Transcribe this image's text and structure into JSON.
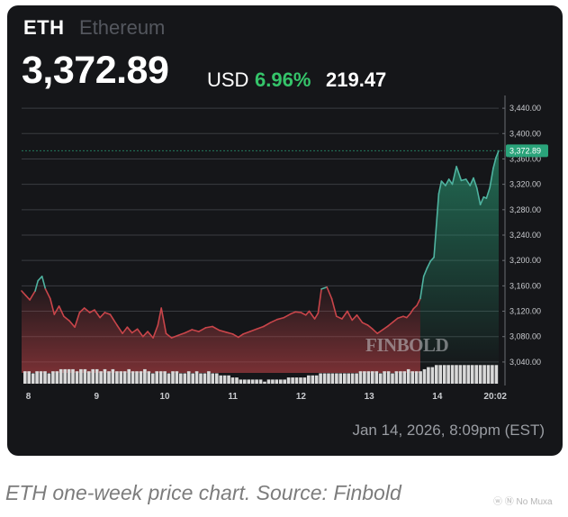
{
  "header": {
    "ticker": "ETH",
    "name": "Ethereum",
    "price": "3,372.89",
    "currency": "USD",
    "change_pct": "6.96%",
    "change_abs": "219.47"
  },
  "timestamp": "Jan 14, 2026, 8:09pm (EST)",
  "caption": "ETH one-week price chart. Source: Finbold",
  "credit": "ⓦ Ⓝ No Muxa",
  "watermark": "FINBOLD",
  "colors": {
    "background": "#151619",
    "up": "#35c46a",
    "down": "#c9454a",
    "line_up": "#4fb3a0",
    "text_muted": "#9a9da3",
    "volume": "#d9d9d9"
  },
  "chart_data": {
    "type": "line",
    "ylim": [
      3020,
      3460
    ],
    "yticks": [
      3440,
      3400,
      3360,
      3320,
      3280,
      3240,
      3200,
      3160,
      3120,
      3080,
      3040
    ],
    "ytick_labels": [
      "3,440.00",
      "3,400.00",
      "3,360.00",
      "3,320.00",
      "3,280.00",
      "3,240.00",
      "3,200.00",
      "3,160.00",
      "3,120.00",
      "3,080.00",
      "3,040.00"
    ],
    "current_value": 3372.89,
    "current_label": "3,372.89",
    "xticks": [
      8,
      9,
      10,
      11,
      12,
      13,
      14,
      14.85
    ],
    "xtick_labels": [
      "8",
      "9",
      "10",
      "11",
      "12",
      "13",
      "14",
      "20:02"
    ],
    "xlim": [
      7.9,
      14.9
    ],
    "series": [
      {
        "x": [
          7.9,
          7.96,
          8.02,
          8.1,
          8.14,
          8.2,
          8.25,
          8.32,
          8.38,
          8.45,
          8.52,
          8.6,
          8.68,
          8.75,
          8.82,
          8.9,
          8.97,
          9.05,
          9.12,
          9.2,
          9.3,
          9.38,
          9.45,
          9.52,
          9.6,
          9.68,
          9.75,
          9.83,
          9.9,
          9.95,
          10.02,
          10.1,
          10.2,
          10.3,
          10.4,
          10.5,
          10.6,
          10.7,
          10.8,
          10.9,
          11.0,
          11.08,
          11.15,
          11.25,
          11.35,
          11.45,
          11.55,
          11.65,
          11.75,
          11.85,
          11.92,
          12.0,
          12.07,
          12.12,
          12.2,
          12.25,
          12.3,
          12.38,
          12.45,
          12.52,
          12.6,
          12.68,
          12.75,
          12.82,
          12.9,
          12.98,
          13.05,
          13.12,
          13.2,
          13.28,
          13.35,
          13.42,
          13.5,
          13.55,
          13.6,
          13.65,
          13.7,
          13.75,
          13.8,
          13.85,
          13.9,
          13.95,
          14.02,
          14.06,
          14.12,
          14.17,
          14.22,
          14.28,
          14.35,
          14.42,
          14.48,
          14.53,
          14.58,
          14.63,
          14.68,
          14.72,
          14.77,
          14.82,
          14.86,
          14.9
        ],
        "y": [
          3152,
          3145,
          3138,
          3152,
          3168,
          3175,
          3155,
          3140,
          3115,
          3128,
          3112,
          3105,
          3095,
          3118,
          3125,
          3118,
          3122,
          3110,
          3118,
          3115,
          3098,
          3085,
          3095,
          3086,
          3092,
          3080,
          3088,
          3078,
          3098,
          3125,
          3085,
          3078,
          3082,
          3086,
          3091,
          3088,
          3094,
          3096,
          3090,
          3087,
          3084,
          3079,
          3084,
          3088,
          3092,
          3096,
          3102,
          3107,
          3110,
          3116,
          3119,
          3118,
          3114,
          3120,
          3108,
          3117,
          3155,
          3158,
          3140,
          3112,
          3108,
          3120,
          3106,
          3114,
          3102,
          3098,
          3092,
          3085,
          3091,
          3097,
          3103,
          3109,
          3112,
          3110,
          3116,
          3124,
          3129,
          3140,
          3175,
          3188,
          3199,
          3205,
          3305,
          3325,
          3318,
          3328,
          3320,
          3348,
          3326,
          3328,
          3318,
          3330,
          3314,
          3288,
          3300,
          3298,
          3315,
          3345,
          3362,
          3372.89
        ]
      }
    ],
    "volume": [
      6,
      6,
      5,
      6,
      6,
      6,
      5,
      6,
      6,
      7,
      7,
      7,
      7,
      6,
      7,
      7,
      6,
      7,
      7,
      6,
      7,
      6,
      7,
      6,
      6,
      6,
      7,
      6,
      6,
      6,
      7,
      6,
      5,
      6,
      6,
      6,
      5,
      6,
      6,
      5,
      5,
      6,
      5,
      6,
      5,
      5,
      6,
      5,
      5,
      4,
      4,
      4,
      3,
      3,
      2,
      2,
      2,
      2,
      2,
      2,
      1,
      2,
      2,
      2,
      2,
      2,
      3,
      3,
      3,
      3,
      3,
      4,
      4,
      4,
      5,
      5,
      5,
      5,
      5,
      5,
      5,
      5,
      5,
      5,
      6,
      6,
      6,
      6,
      6,
      5,
      6,
      6,
      5,
      6,
      6,
      6,
      7,
      6,
      6,
      6,
      7,
      8,
      8,
      9,
      9,
      9,
      9,
      9,
      9,
      9,
      9,
      9,
      9,
      9,
      9,
      9,
      9,
      9,
      9
    ]
  }
}
